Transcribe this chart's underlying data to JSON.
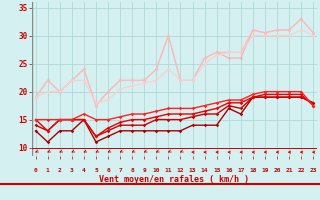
{
  "xlabel": "Vent moyen/en rafales ( km/h )",
  "background_color": "#d4f0f0",
  "grid_color": "#b0d8d8",
  "x": [
    0,
    1,
    2,
    3,
    4,
    5,
    6,
    7,
    8,
    9,
    10,
    11,
    12,
    13,
    14,
    15,
    16,
    17,
    18,
    19,
    20,
    21,
    22,
    23
  ],
  "ylim": [
    8.5,
    36
  ],
  "xlim": [
    -0.3,
    23.3
  ],
  "yticks": [
    10,
    15,
    20,
    25,
    30,
    35
  ],
  "lines": [
    {
      "y": [
        19,
        22,
        20,
        22,
        24,
        17.5,
        20,
        22,
        22,
        22,
        24,
        30,
        22,
        22,
        26,
        27,
        26,
        26,
        31,
        30.5,
        31,
        31,
        33,
        30.5
      ],
      "color": "#ffaaaa",
      "lw": 0.8,
      "marker": "o",
      "ms": 1.8
    },
    {
      "y": [
        19,
        22,
        20,
        22,
        24,
        17.5,
        20,
        22,
        22,
        22,
        24,
        30,
        22,
        22,
        26,
        27,
        27,
        27,
        31,
        30.5,
        31,
        31,
        33,
        30.5
      ],
      "color": "#ffbbbb",
      "lw": 0.8,
      "marker": "o",
      "ms": 1.8
    },
    {
      "y": [
        19,
        20,
        20,
        22,
        22,
        18,
        18.5,
        20.5,
        21,
        21.5,
        22,
        24,
        22,
        22,
        25,
        26.5,
        27,
        27,
        30,
        30,
        30,
        30,
        31,
        30
      ],
      "color": "#ffcccc",
      "lw": 0.8,
      "marker": "o",
      "ms": 1.8
    },
    {
      "y": [
        13,
        11,
        13,
        13,
        15,
        11,
        12,
        13,
        13,
        13,
        13,
        13,
        13,
        14,
        14,
        14,
        17,
        16,
        19,
        19,
        19,
        19,
        19,
        18
      ],
      "color": "#aa0000",
      "lw": 1.0,
      "marker": "D",
      "ms": 1.8
    },
    {
      "y": [
        14,
        13,
        15,
        15,
        15,
        12,
        13,
        14,
        14,
        14,
        15,
        15,
        15,
        15.5,
        16,
        16,
        17.5,
        17,
        19,
        19,
        19,
        19,
        19,
        18
      ],
      "color": "#cc0000",
      "lw": 1.0,
      "marker": "D",
      "ms": 1.8
    },
    {
      "y": [
        15,
        13,
        15,
        15,
        15,
        12,
        13.5,
        14.5,
        15,
        15,
        15.5,
        16,
        16,
        16,
        16.5,
        17,
        18,
        18,
        19,
        19.5,
        19.5,
        19.5,
        19.5,
        17.5
      ],
      "color": "#ee0000",
      "lw": 1.0,
      "marker": "D",
      "ms": 1.8
    },
    {
      "y": [
        15,
        15,
        15,
        15,
        16,
        15,
        15,
        15.5,
        16,
        16,
        16.5,
        17,
        17,
        17,
        17.5,
        18,
        18.5,
        18.5,
        19.5,
        20,
        20,
        20,
        20,
        17.5
      ],
      "color": "#ff2222",
      "lw": 1.0,
      "marker": "D",
      "ms": 1.8
    }
  ],
  "arrow_angles_deg": [
    225,
    225,
    225,
    225,
    225,
    225,
    225,
    225,
    225,
    225,
    225,
    225,
    225,
    270,
    270,
    270,
    270,
    270,
    270,
    270,
    270,
    270,
    270,
    270
  ]
}
